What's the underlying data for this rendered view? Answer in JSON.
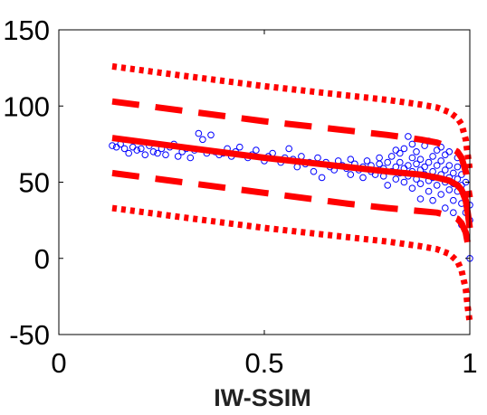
{
  "chart_data": {
    "type": "scatter",
    "title": "",
    "xlabel": "IW-SSIM",
    "ylabel": "",
    "xlim": [
      0,
      1
    ],
    "ylim": [
      -50,
      150
    ],
    "x_ticks": [
      0,
      0.5,
      1
    ],
    "x_tick_labels": [
      "0",
      "0.5",
      "1"
    ],
    "y_ticks": [
      -50,
      0,
      50,
      100,
      150
    ],
    "y_tick_labels": [
      "-50",
      "0",
      "50",
      "100",
      "150"
    ],
    "grid": false,
    "legend": "none",
    "colors": {
      "points": "#0000ff",
      "fit": "#ff0000"
    },
    "series": [
      {
        "kind": "scatter",
        "marker": "open-circle",
        "points": [
          [
            0.13,
            74
          ],
          [
            0.14,
            73
          ],
          [
            0.15,
            75
          ],
          [
            0.16,
            72
          ],
          [
            0.17,
            69
          ],
          [
            0.18,
            73
          ],
          [
            0.19,
            71
          ],
          [
            0.2,
            72
          ],
          [
            0.21,
            68
          ],
          [
            0.22,
            74
          ],
          [
            0.23,
            70
          ],
          [
            0.24,
            69
          ],
          [
            0.25,
            72
          ],
          [
            0.26,
            68
          ],
          [
            0.27,
            73
          ],
          [
            0.28,
            75
          ],
          [
            0.29,
            67
          ],
          [
            0.3,
            70
          ],
          [
            0.31,
            72
          ],
          [
            0.32,
            66
          ],
          [
            0.33,
            71
          ],
          [
            0.34,
            82
          ],
          [
            0.35,
            78
          ],
          [
            0.36,
            69
          ],
          [
            0.37,
            81
          ],
          [
            0.38,
            70
          ],
          [
            0.39,
            68
          ],
          [
            0.4,
            69
          ],
          [
            0.41,
            72
          ],
          [
            0.42,
            67
          ],
          [
            0.43,
            70
          ],
          [
            0.44,
            73
          ],
          [
            0.46,
            66
          ],
          [
            0.47,
            68
          ],
          [
            0.48,
            71
          ],
          [
            0.5,
            64
          ],
          [
            0.51,
            67
          ],
          [
            0.52,
            69
          ],
          [
            0.54,
            63
          ],
          [
            0.55,
            66
          ],
          [
            0.56,
            72
          ],
          [
            0.57,
            65
          ],
          [
            0.58,
            60
          ],
          [
            0.59,
            67
          ],
          [
            0.6,
            62
          ],
          [
            0.61,
            63
          ],
          [
            0.62,
            57
          ],
          [
            0.63,
            66
          ],
          [
            0.64,
            53
          ],
          [
            0.65,
            63
          ],
          [
            0.66,
            60
          ],
          [
            0.67,
            58
          ],
          [
            0.68,
            64
          ],
          [
            0.69,
            61
          ],
          [
            0.7,
            59
          ],
          [
            0.71,
            65
          ],
          [
            0.71,
            55
          ],
          [
            0.72,
            62
          ],
          [
            0.73,
            58
          ],
          [
            0.74,
            60
          ],
          [
            0.74,
            53
          ],
          [
            0.75,
            64
          ],
          [
            0.76,
            57
          ],
          [
            0.76,
            61
          ],
          [
            0.77,
            55
          ],
          [
            0.78,
            62
          ],
          [
            0.78,
            66
          ],
          [
            0.79,
            54
          ],
          [
            0.79,
            59
          ],
          [
            0.8,
            63
          ],
          [
            0.8,
            48
          ],
          [
            0.81,
            57
          ],
          [
            0.81,
            67
          ],
          [
            0.82,
            60
          ],
          [
            0.82,
            52
          ],
          [
            0.83,
            69
          ],
          [
            0.83,
            63
          ],
          [
            0.83,
            56
          ],
          [
            0.84,
            50
          ],
          [
            0.84,
            72
          ],
          [
            0.84,
            59
          ],
          [
            0.85,
            61
          ],
          [
            0.85,
            54
          ],
          [
            0.85,
            80
          ],
          [
            0.86,
            66
          ],
          [
            0.86,
            57
          ],
          [
            0.86,
            46
          ],
          [
            0.87,
            62
          ],
          [
            0.87,
            52
          ],
          [
            0.87,
            70
          ],
          [
            0.88,
            58
          ],
          [
            0.88,
            65
          ],
          [
            0.88,
            49
          ],
          [
            0.89,
            60
          ],
          [
            0.89,
            55
          ],
          [
            0.89,
            74
          ],
          [
            0.9,
            63
          ],
          [
            0.9,
            51
          ],
          [
            0.9,
            44
          ],
          [
            0.91,
            57
          ],
          [
            0.91,
            67
          ],
          [
            0.91,
            53
          ],
          [
            0.92,
            61
          ],
          [
            0.92,
            48
          ],
          [
            0.92,
            71
          ],
          [
            0.93,
            55
          ],
          [
            0.93,
            64
          ],
          [
            0.93,
            42
          ],
          [
            0.94,
            58
          ],
          [
            0.94,
            50
          ],
          [
            0.94,
            68
          ],
          [
            0.95,
            53
          ],
          [
            0.95,
            61
          ],
          [
            0.95,
            45
          ],
          [
            0.96,
            56
          ],
          [
            0.96,
            49
          ],
          [
            0.96,
            38
          ],
          [
            0.97,
            52
          ],
          [
            0.97,
            60
          ],
          [
            0.97,
            44
          ],
          [
            0.98,
            48
          ],
          [
            0.98,
            55
          ],
          [
            0.98,
            36
          ],
          [
            0.99,
            42
          ],
          [
            0.99,
            30
          ],
          [
            0.99,
            50
          ],
          [
            1.0,
            25
          ],
          [
            1.0,
            35
          ],
          [
            1.0,
            0
          ],
          [
            0.82,
            71
          ],
          [
            0.86,
            75
          ],
          [
            0.9,
            77
          ],
          [
            0.93,
            73
          ],
          [
            0.95,
            70
          ],
          [
            0.97,
            66
          ],
          [
            0.88,
            39
          ],
          [
            0.91,
            38
          ],
          [
            0.94,
            33
          ],
          [
            0.96,
            30
          ],
          [
            0.98,
            22
          ]
        ]
      },
      {
        "kind": "line",
        "style": "solid",
        "role": "fit",
        "points": [
          [
            0.13,
            79
          ],
          [
            0.3,
            73
          ],
          [
            0.5,
            66
          ],
          [
            0.7,
            60
          ],
          [
            0.8,
            57
          ],
          [
            0.88,
            55
          ],
          [
            0.92,
            53
          ],
          [
            0.95,
            51
          ],
          [
            0.97,
            48
          ],
          [
            0.98,
            45
          ],
          [
            0.99,
            38
          ],
          [
            0.995,
            30
          ],
          [
            1.0,
            20
          ]
        ]
      },
      {
        "kind": "line",
        "style": "dashed",
        "role": "upper-band",
        "points": [
          [
            0.13,
            103
          ],
          [
            0.3,
            97
          ],
          [
            0.5,
            90
          ],
          [
            0.7,
            84
          ],
          [
            0.8,
            81
          ],
          [
            0.88,
            78
          ],
          [
            0.92,
            76
          ],
          [
            0.95,
            73
          ],
          [
            0.97,
            70
          ],
          [
            0.98,
            66
          ],
          [
            0.99,
            57
          ],
          [
            0.995,
            48
          ],
          [
            1.0,
            40
          ]
        ]
      },
      {
        "kind": "line",
        "style": "dashed",
        "role": "lower-band",
        "points": [
          [
            0.13,
            56
          ],
          [
            0.3,
            50
          ],
          [
            0.5,
            43
          ],
          [
            0.7,
            36
          ],
          [
            0.8,
            33
          ],
          [
            0.88,
            31
          ],
          [
            0.92,
            30
          ],
          [
            0.95,
            28
          ],
          [
            0.97,
            26
          ],
          [
            0.98,
            23
          ],
          [
            0.99,
            17
          ],
          [
            0.995,
            10
          ],
          [
            1.0,
            0
          ]
        ]
      },
      {
        "kind": "line",
        "style": "dotted",
        "role": "upper-outer",
        "points": [
          [
            0.13,
            126
          ],
          [
            0.3,
            120
          ],
          [
            0.5,
            113
          ],
          [
            0.7,
            107
          ],
          [
            0.8,
            104
          ],
          [
            0.88,
            101
          ],
          [
            0.92,
            99
          ],
          [
            0.95,
            96
          ],
          [
            0.97,
            92
          ],
          [
            0.98,
            88
          ],
          [
            0.99,
            78
          ],
          [
            0.995,
            68
          ],
          [
            1.0,
            58
          ]
        ]
      },
      {
        "kind": "line",
        "style": "dotted",
        "role": "lower-outer",
        "points": [
          [
            0.13,
            33
          ],
          [
            0.3,
            27
          ],
          [
            0.5,
            20
          ],
          [
            0.7,
            14
          ],
          [
            0.8,
            11
          ],
          [
            0.88,
            8
          ],
          [
            0.92,
            6
          ],
          [
            0.95,
            3
          ],
          [
            0.97,
            -2
          ],
          [
            0.98,
            -8
          ],
          [
            0.99,
            -20
          ],
          [
            0.995,
            -32
          ],
          [
            1.0,
            -42
          ]
        ]
      }
    ]
  }
}
